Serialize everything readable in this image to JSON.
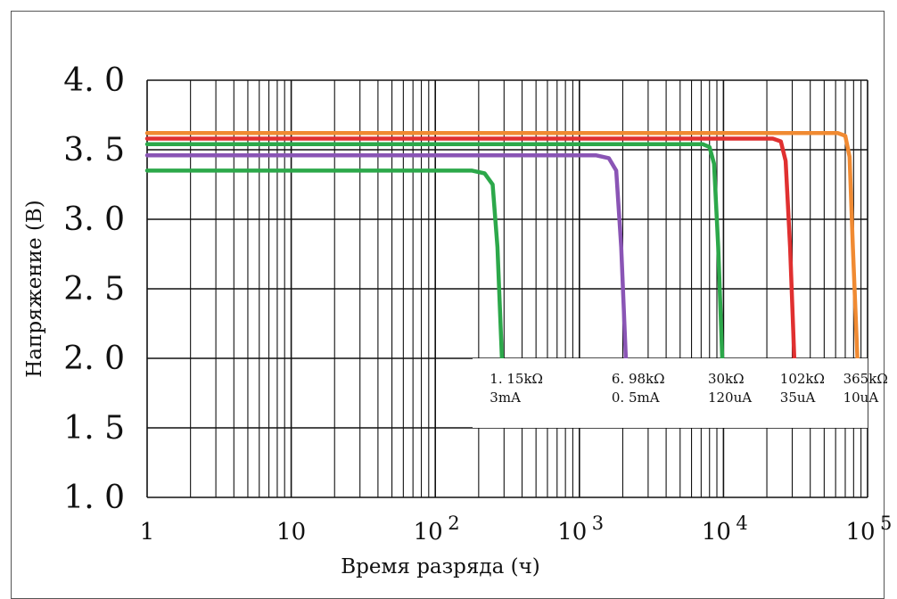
{
  "chart_data": {
    "type": "line",
    "title": "",
    "xlabel": "Время разряда (ч)",
    "ylabel": "Напряжение (В)",
    "x_scale": "log",
    "xlim": [
      1,
      100000
    ],
    "ylim": [
      1.0,
      4.0
    ],
    "grid": true,
    "y_ticks": [
      "4. 0",
      "3. 5",
      "3. 0",
      "2. 5",
      "2. 0",
      "1. 5",
      "1. 0"
    ],
    "x_ticks": [
      {
        "base": "1",
        "exp": ""
      },
      {
        "base": "10",
        "exp": ""
      },
      {
        "base": "10",
        "exp": "2"
      },
      {
        "base": "10",
        "exp": "3"
      },
      {
        "base": "10",
        "exp": "4"
      },
      {
        "base": "10",
        "exp": "5"
      }
    ],
    "series": [
      {
        "resistance": "1. 15kΩ",
        "current": "3mA",
        "color": "#2ca84a",
        "points": [
          [
            1,
            3.35
          ],
          [
            180,
            3.35
          ],
          [
            220,
            3.33
          ],
          [
            250,
            3.25
          ],
          [
            270,
            2.8
          ],
          [
            290,
            2.0
          ]
        ]
      },
      {
        "resistance": "6. 98kΩ",
        "current": "0. 5mA",
        "color": "#8a55b5",
        "points": [
          [
            1,
            3.46
          ],
          [
            1300,
            3.46
          ],
          [
            1600,
            3.44
          ],
          [
            1800,
            3.35
          ],
          [
            1950,
            2.8
          ],
          [
            2100,
            2.0
          ]
        ]
      },
      {
        "resistance": "30kΩ",
        "current": "120uA",
        "color": "#2ca84a",
        "points": [
          [
            1,
            3.54
          ],
          [
            7200,
            3.54
          ],
          [
            8000,
            3.52
          ],
          [
            8600,
            3.4
          ],
          [
            9200,
            2.8
          ],
          [
            9800,
            2.0
          ]
        ]
      },
      {
        "resistance": "102kΩ",
        "current": "35uA",
        "color": "#e03030",
        "points": [
          [
            1,
            3.58
          ],
          [
            22000,
            3.58
          ],
          [
            25000,
            3.56
          ],
          [
            27000,
            3.42
          ],
          [
            29000,
            2.8
          ],
          [
            31000,
            2.0
          ]
        ]
      },
      {
        "resistance": "365kΩ",
        "current": "10uA",
        "color": "#f08a32",
        "points": [
          [
            1,
            3.62
          ],
          [
            62000,
            3.62
          ],
          [
            70000,
            3.6
          ],
          [
            75000,
            3.45
          ],
          [
            79000,
            2.8
          ],
          [
            85000,
            2.0
          ]
        ]
      }
    ],
    "annotations": [
      {
        "x": 300,
        "line1": "1. 15kΩ",
        "line2": "3mA"
      },
      {
        "x": 2100,
        "line1": "6. 98kΩ",
        "line2": "0. 5mA"
      },
      {
        "x": 9800,
        "line1": "30kΩ",
        "line2": "120uA"
      },
      {
        "x": 31000,
        "line1": "102kΩ",
        "line2": "35uA"
      },
      {
        "x": 85000,
        "line1": "365kΩ",
        "line2": "10uA"
      }
    ]
  }
}
